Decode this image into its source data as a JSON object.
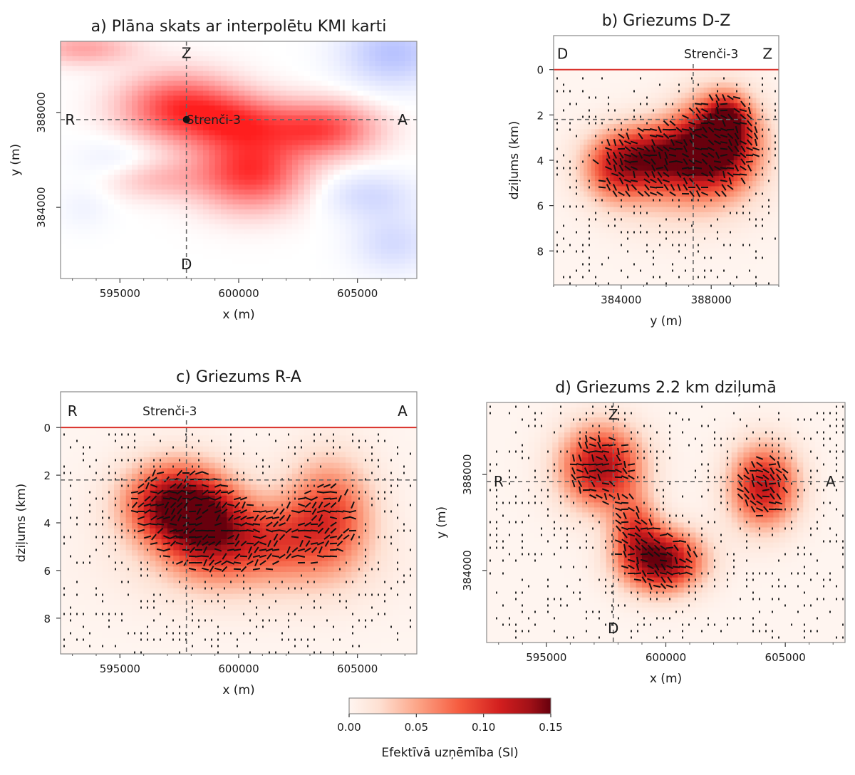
{
  "chart_data": [
    {
      "id": "a",
      "type": "heatmap",
      "title": "a) Plāna skats ar interpolētu KMI karti",
      "xlabel": "x (m)",
      "ylabel": "y (m)",
      "xlim": [
        592500,
        607500
      ],
      "ylim": [
        381000,
        391000
      ],
      "xticks": [
        595000,
        600000,
        605000
      ],
      "xtick_labels": [
        "595000",
        "600000",
        "605000"
      ],
      "yticks": [
        384000,
        388000
      ],
      "ytick_labels": [
        "384000",
        "388000"
      ],
      "colormap": "diverging red-white-blue",
      "markers": [
        {
          "label": "Z",
          "x": 597800,
          "y": 390500
        },
        {
          "label": "D",
          "x": 597800,
          "y": 381600
        },
        {
          "label": "R",
          "x": 592900,
          "y": 387700
        },
        {
          "label": "A",
          "x": 606900,
          "y": 387700
        }
      ],
      "station": {
        "label": "Strenči-3",
        "x": 597800,
        "y": 387700
      },
      "blobs": [
        {
          "x": 597500,
          "y": 388200,
          "sx": 1700,
          "sy": 1000,
          "v": 0.85
        },
        {
          "x": 600500,
          "y": 385500,
          "sx": 1600,
          "sy": 1100,
          "v": 0.9
        },
        {
          "x": 603500,
          "y": 387300,
          "sx": 1600,
          "sy": 800,
          "v": 0.8
        },
        {
          "x": 600000,
          "y": 387600,
          "sx": 1500,
          "sy": 800,
          "v": 0.6
        },
        {
          "x": 596500,
          "y": 385200,
          "sx": 1500,
          "sy": 600,
          "v": 0.3
        },
        {
          "x": 593500,
          "y": 390700,
          "sx": 1500,
          "sy": 500,
          "v": 0.4
        },
        {
          "x": 606500,
          "y": 390500,
          "sx": 1500,
          "sy": 1000,
          "v": -0.5
        },
        {
          "x": 605500,
          "y": 384500,
          "sx": 1400,
          "sy": 700,
          "v": -0.3
        },
        {
          "x": 606500,
          "y": 382500,
          "sx": 1200,
          "sy": 900,
          "v": -0.3
        },
        {
          "x": 595000,
          "y": 386000,
          "sx": 1300,
          "sy": 700,
          "v": -0.15
        },
        {
          "x": 593500,
          "y": 384000,
          "sx": 800,
          "sy": 700,
          "v": -0.1
        }
      ]
    },
    {
      "id": "b",
      "type": "heatmap",
      "title": "b) Griezums D-Z",
      "xlabel": "y (m)",
      "ylabel": "dziļums (km)",
      "xlim": [
        381000,
        391000
      ],
      "ylim": [
        9.5,
        -1.5
      ],
      "xticks": [
        384000,
        388000
      ],
      "xtick_labels": [
        "384000",
        "388000"
      ],
      "yticks": [
        0,
        2,
        4,
        6,
        8
      ],
      "ytick_labels": [
        "0",
        "2",
        "4",
        "6",
        "8"
      ],
      "markers": [
        {
          "label": "D",
          "x": 381400,
          "y": -0.7
        },
        {
          "label": "Z",
          "x": 390500,
          "y": -0.7
        }
      ],
      "station": {
        "label": "Strenči-3",
        "x": 388000,
        "y": -0.7
      },
      "cross_depth_km": 2.2,
      "cross_position": 387200,
      "blobs": [
        {
          "x": 385600,
          "y": 3.8,
          "sx": 1700,
          "sy": 1.0,
          "v": 0.12
        },
        {
          "x": 388300,
          "y": 3.2,
          "sx": 1300,
          "sy": 1.4,
          "v": 0.15
        },
        {
          "x": 388700,
          "y": 2.2,
          "sx": 600,
          "sy": 0.7,
          "v": 0.08
        },
        {
          "x": 383700,
          "y": 4.5,
          "sx": 1000,
          "sy": 1.0,
          "v": 0.06
        },
        {
          "x": 386500,
          "y": 5.3,
          "sx": 2200,
          "sy": 1.3,
          "v": 0.035
        }
      ],
      "dot_density": 0.3
    },
    {
      "id": "c",
      "type": "heatmap",
      "title": "c) Griezums R-A",
      "xlabel": "x (m)",
      "ylabel": "dziļums (km)",
      "xlim": [
        592500,
        607500
      ],
      "ylim": [
        9.5,
        -1.5
      ],
      "xticks": [
        595000,
        600000,
        605000
      ],
      "xtick_labels": [
        "595000",
        "600000",
        "605000"
      ],
      "yticks": [
        0,
        2,
        4,
        6,
        8
      ],
      "ytick_labels": [
        "0",
        "2",
        "4",
        "6",
        "8"
      ],
      "markers": [
        {
          "label": "R",
          "x": 593000,
          "y": -0.7
        },
        {
          "label": "A",
          "x": 606900,
          "y": -0.7
        }
      ],
      "station": {
        "label": "Strenči-3",
        "x": 597100,
        "y": -0.7
      },
      "cross_depth_km": 2.2,
      "cross_position": 597800,
      "blobs": [
        {
          "x": 597300,
          "y": 3.2,
          "sx": 1500,
          "sy": 1.2,
          "v": 0.14
        },
        {
          "x": 598700,
          "y": 4.3,
          "sx": 1300,
          "sy": 1.3,
          "v": 0.09
        },
        {
          "x": 601200,
          "y": 4.6,
          "sx": 1500,
          "sy": 1.1,
          "v": 0.06
        },
        {
          "x": 603800,
          "y": 3.6,
          "sx": 1300,
          "sy": 1.6,
          "v": 0.09
        },
        {
          "x": 600500,
          "y": 5.8,
          "sx": 3500,
          "sy": 1.3,
          "v": 0.03
        }
      ],
      "dot_density": 0.3
    },
    {
      "id": "d",
      "type": "heatmap",
      "title": "d) Griezums 2.2 km dziļumā",
      "xlabel": "x (m)",
      "ylabel": "y (m)",
      "xlim": [
        592500,
        607500
      ],
      "ylim": [
        381000,
        391000
      ],
      "xticks": [
        595000,
        600000,
        605000
      ],
      "xtick_labels": [
        "595000",
        "600000",
        "605000"
      ],
      "yticks": [
        384000,
        388000
      ],
      "ytick_labels": [
        "384000",
        "388000"
      ],
      "markers": [
        {
          "label": "Z",
          "x": 597800,
          "y": 390500
        },
        {
          "label": "D",
          "x": 597800,
          "y": 381600
        },
        {
          "label": "R",
          "x": 593000,
          "y": 387700
        },
        {
          "label": "A",
          "x": 606900,
          "y": 387700
        }
      ],
      "cross_position_x": 597800,
      "cross_position_y": 387700,
      "blobs": [
        {
          "x": 597300,
          "y": 388300,
          "sx": 1200,
          "sy": 1200,
          "v": 0.13
        },
        {
          "x": 599800,
          "y": 384400,
          "sx": 1200,
          "sy": 900,
          "v": 0.15
        },
        {
          "x": 598700,
          "y": 385800,
          "sx": 700,
          "sy": 900,
          "v": 0.07
        },
        {
          "x": 604100,
          "y": 387500,
          "sx": 1000,
          "sy": 1200,
          "v": 0.12
        }
      ],
      "dot_density": 0.3
    }
  ],
  "colorbar": {
    "label": "Efektīvā uzņēmība (SI)",
    "vmin": 0.0,
    "vmax": 0.15,
    "ticks": [
      0.0,
      0.05,
      0.1,
      0.15
    ],
    "tick_labels": [
      "0.00",
      "0.05",
      "0.10",
      "0.15"
    ],
    "colormap": "Reds"
  }
}
